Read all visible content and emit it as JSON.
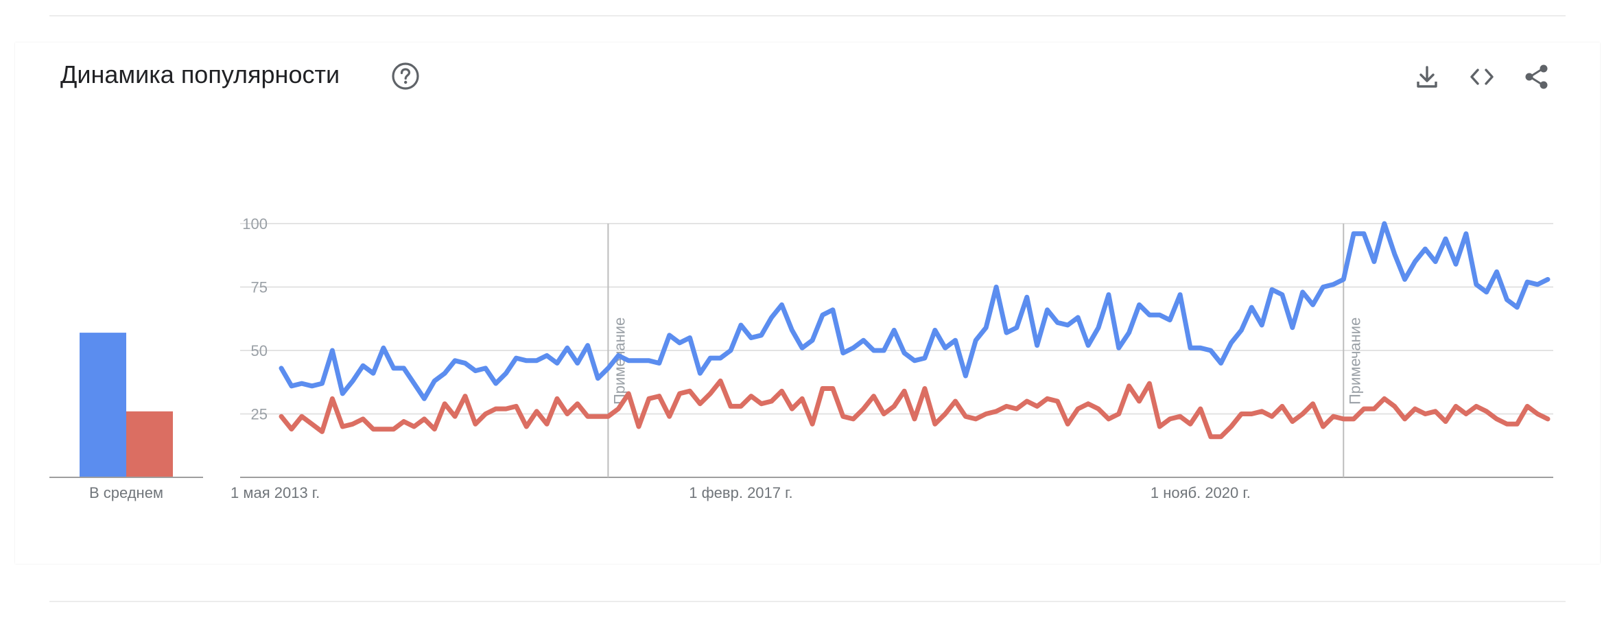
{
  "card": {
    "title": "Динамика популярности"
  },
  "icons": {
    "help": "help-circle-icon",
    "download": "download-icon",
    "embed": "code-icon",
    "share": "share-icon"
  },
  "colors": {
    "series_1": "#5b8def",
    "series_2": "#db6e62",
    "grid": "#e3e3e3",
    "axis": "#9e9e9e"
  },
  "chart_data": [
    {
      "type": "bar",
      "categories": [
        "В среднем"
      ],
      "series": [
        {
          "values": [
            57
          ]
        },
        {
          "values": [
            26
          ]
        }
      ],
      "ylim": [
        0,
        100
      ]
    },
    {
      "type": "line",
      "x_start": "2013-05",
      "x_step": "month",
      "ylim": [
        0,
        100
      ],
      "yticks": [
        25,
        50,
        75,
        100
      ],
      "xtick_labels": [
        {
          "date": "2013-05",
          "label": "1 мая 2013 г."
        },
        {
          "date": "2017-02",
          "label": "1 февр. 2017 г."
        },
        {
          "date": "2020-11",
          "label": "1 нояб. 2020 г."
        }
      ],
      "annotations": [
        {
          "date": "2016-01",
          "label": "Примечание"
        },
        {
          "date": "2022-01",
          "label": "Примечание"
        }
      ],
      "grid": true,
      "series": [
        {
          "values": [
            43,
            36,
            37,
            36,
            37,
            50,
            33,
            38,
            44,
            41,
            51,
            43,
            43,
            37,
            31,
            38,
            41,
            46,
            45,
            42,
            43,
            37,
            41,
            47,
            46,
            46,
            48,
            45,
            51,
            45,
            52,
            39,
            43,
            48,
            46,
            46,
            46,
            45,
            56,
            53,
            55,
            41,
            47,
            47,
            50,
            60,
            55,
            56,
            63,
            68,
            58,
            51,
            54,
            64,
            66,
            49,
            51,
            54,
            50,
            50,
            58,
            49,
            46,
            47,
            58,
            51,
            54,
            40,
            54,
            59,
            75,
            57,
            59,
            71,
            52,
            66,
            61,
            60,
            63,
            52,
            59,
            72,
            51,
            57,
            68,
            64,
            64,
            62,
            72,
            51,
            51,
            50,
            45,
            53,
            58,
            67,
            60,
            74,
            72,
            59,
            73,
            68,
            75,
            76,
            78,
            96,
            96,
            85,
            100,
            88,
            78,
            85,
            90,
            85,
            94,
            84,
            96,
            76,
            73,
            81,
            70,
            67,
            77,
            76,
            78
          ]
        },
        {
          "values": [
            24,
            19,
            24,
            21,
            18,
            31,
            20,
            21,
            23,
            19,
            19,
            19,
            22,
            20,
            23,
            19,
            29,
            24,
            32,
            21,
            25,
            27,
            27,
            28,
            20,
            26,
            21,
            31,
            25,
            29,
            24,
            24,
            24,
            27,
            33,
            20,
            31,
            32,
            24,
            33,
            34,
            29,
            33,
            38,
            28,
            28,
            32,
            29,
            30,
            34,
            27,
            31,
            21,
            35,
            35,
            24,
            23,
            27,
            32,
            25,
            28,
            34,
            23,
            35,
            21,
            25,
            30,
            24,
            23,
            25,
            26,
            28,
            27,
            30,
            28,
            31,
            30,
            21,
            27,
            29,
            27,
            23,
            25,
            36,
            30,
            37,
            20,
            23,
            24,
            21,
            27,
            16,
            16,
            20,
            25,
            25,
            26,
            24,
            28,
            22,
            25,
            29,
            20,
            24,
            23,
            23,
            27,
            27,
            31,
            28,
            23,
            27,
            25,
            26,
            22,
            28,
            25,
            28,
            26,
            23,
            21,
            21,
            28,
            25,
            23
          ]
        }
      ]
    }
  ]
}
